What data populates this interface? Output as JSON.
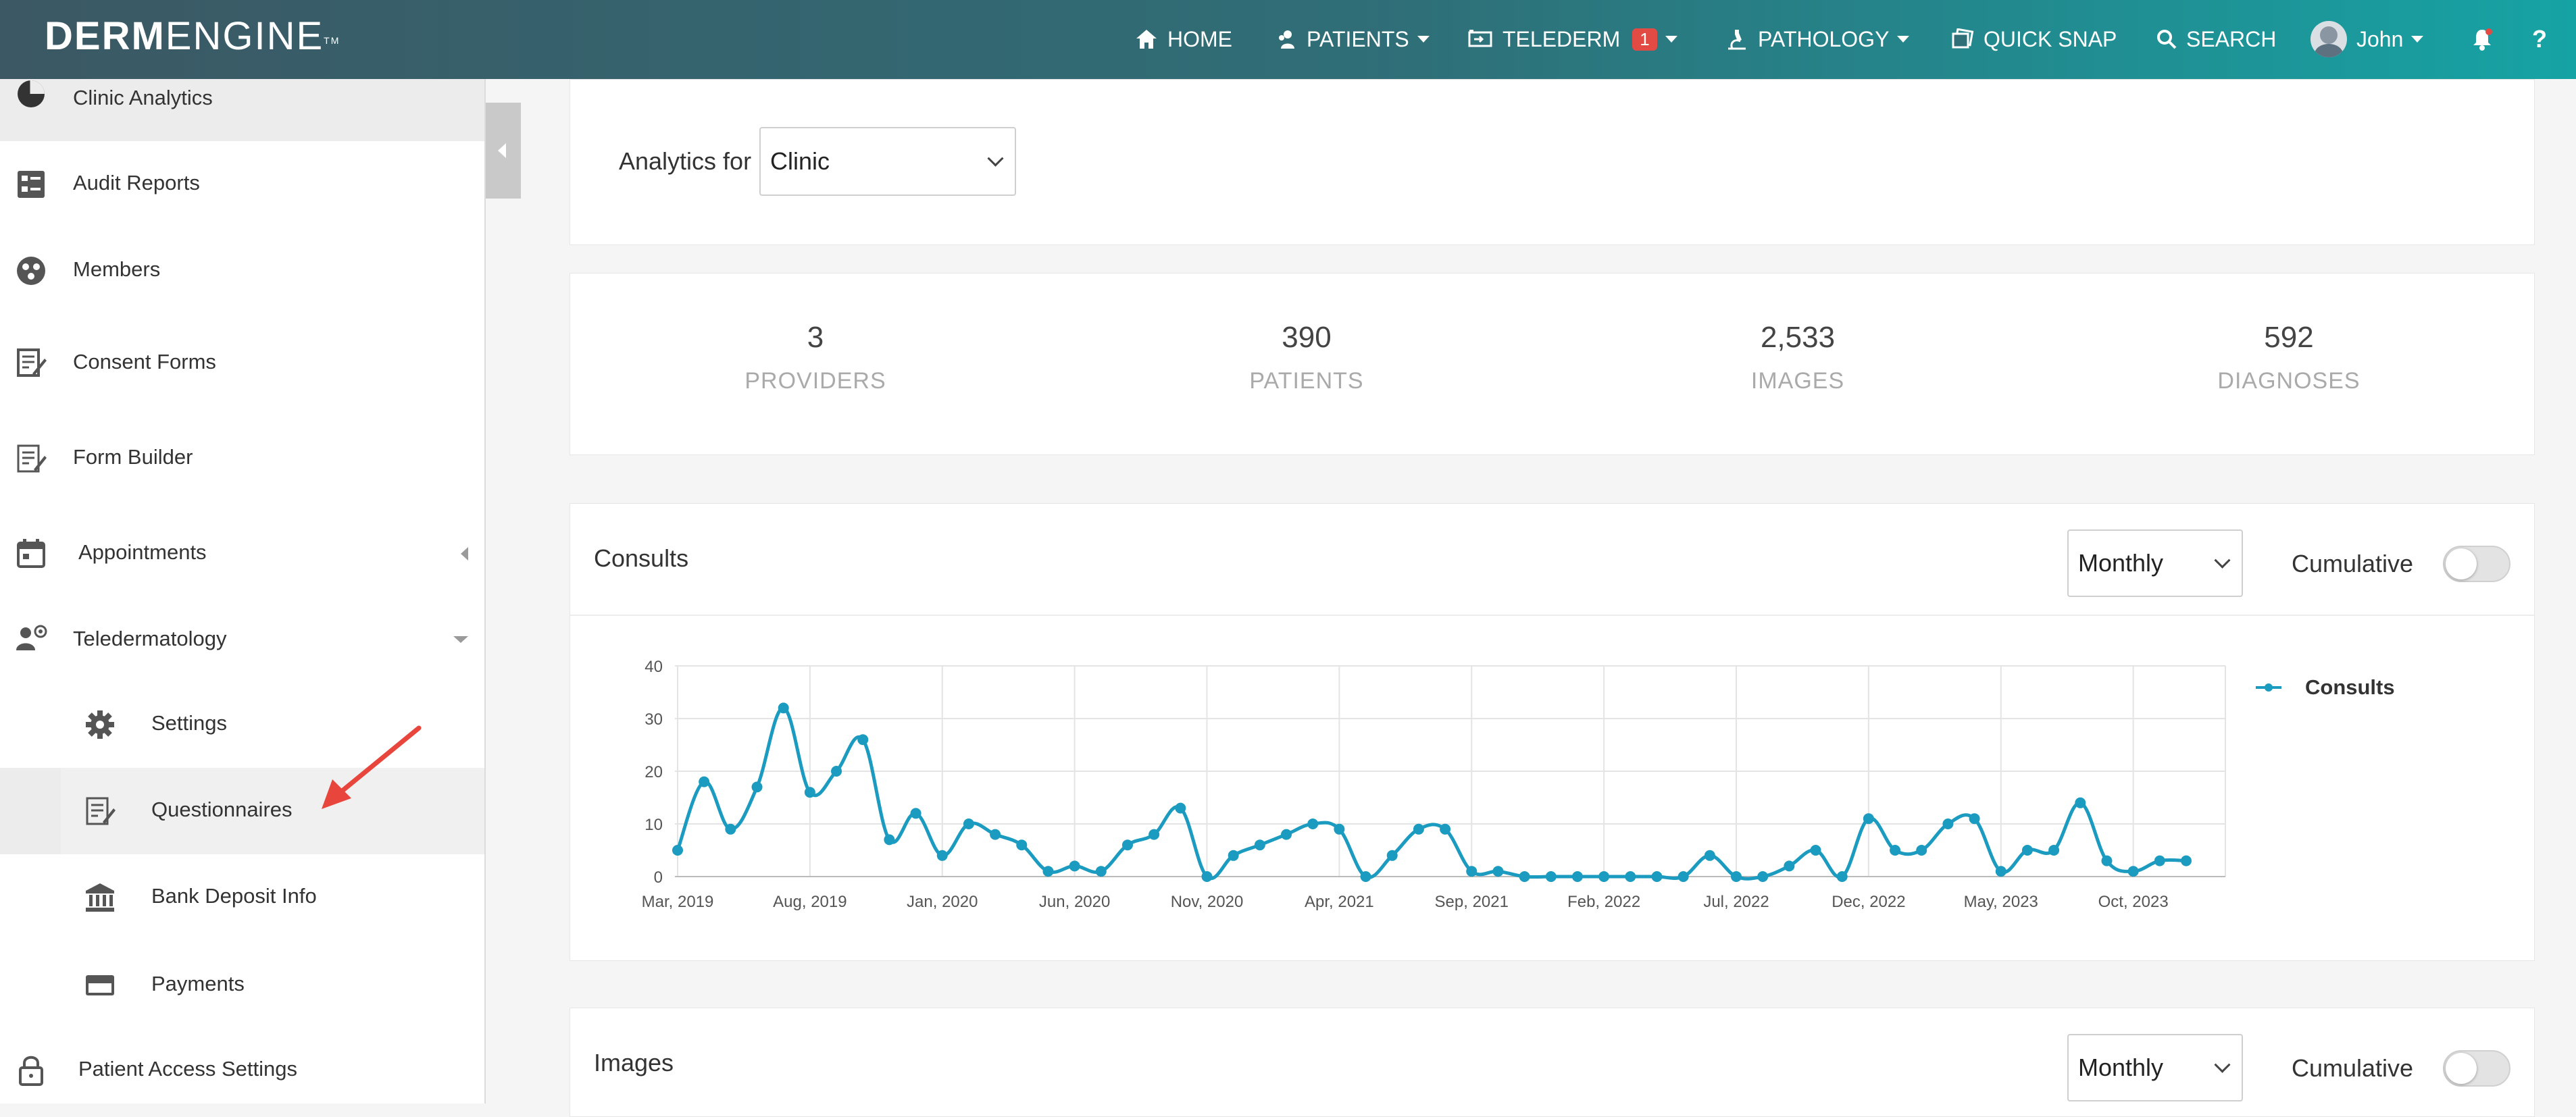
{
  "brand": {
    "logo_bold": "DERM",
    "logo_light": "ENGINE",
    "logo_tm": "TM"
  },
  "nav": {
    "home": "HOME",
    "patients": "PATIENTS",
    "telederm": "TELEDERM",
    "telederm_badge": "1",
    "pathology": "PATHOLOGY",
    "quick_snap": "QUICK SNAP",
    "search": "SEARCH",
    "user": "John"
  },
  "sidebar": {
    "items": [
      {
        "label": "Clinic Analytics",
        "icon": "pie-chart-icon"
      },
      {
        "label": "Audit Reports",
        "icon": "report-icon"
      },
      {
        "label": "Members",
        "icon": "members-icon"
      },
      {
        "label": "Consent Forms",
        "icon": "consent-form-icon"
      },
      {
        "label": "Form Builder",
        "icon": "form-builder-icon"
      },
      {
        "label": "Appointments",
        "icon": "calendar-icon"
      },
      {
        "label": "Teledermatology",
        "icon": "teledermatology-icon"
      },
      {
        "label": "Settings",
        "icon": "gear-icon"
      },
      {
        "label": "Questionnaires",
        "icon": "questionnaire-icon"
      },
      {
        "label": "Bank Deposit Info",
        "icon": "bank-icon"
      },
      {
        "label": "Payments",
        "icon": "credit-card-icon"
      },
      {
        "label": "Patient Access Settings",
        "icon": "lock-icon"
      }
    ]
  },
  "analytics": {
    "label": "Analytics for",
    "selected": "Clinic"
  },
  "stats": [
    {
      "value": "3",
      "label": "PROVIDERS"
    },
    {
      "value": "390",
      "label": "PATIENTS"
    },
    {
      "value": "2,533",
      "label": "IMAGES"
    },
    {
      "value": "592",
      "label": "DIAGNOSES"
    }
  ],
  "consults": {
    "title": "Consults",
    "interval": "Monthly",
    "cumulative_label": "Cumulative",
    "cumulative_on": false
  },
  "images": {
    "title": "Images",
    "interval": "Monthly",
    "cumulative_label": "Cumulative",
    "cumulative_on": false
  },
  "colors": {
    "accent": "#1a9bbf",
    "annotation": "#e8453c"
  },
  "chart_data": {
    "type": "line",
    "title": "",
    "xlabel": "",
    "ylabel": "",
    "ylim": [
      0,
      40
    ],
    "yticks": [
      0,
      10,
      20,
      30,
      40
    ],
    "x_tick_labels": [
      "Mar, 2019",
      "Aug, 2019",
      "Jan, 2020",
      "Jun, 2020",
      "Nov, 2020",
      "Apr, 2021",
      "Sep, 2021",
      "Feb, 2022",
      "Jul, 2022",
      "Dec, 2022",
      "May, 2023",
      "Oct, 2023"
    ],
    "grid": true,
    "legend_position": "top-right",
    "series": [
      {
        "name": "Consults",
        "values": [
          5,
          18,
          9,
          17,
          32,
          16,
          20,
          26,
          7,
          12,
          4,
          10,
          8,
          6,
          1,
          2,
          1,
          6,
          8,
          13,
          0,
          4,
          6,
          8,
          10,
          9,
          0,
          4,
          9,
          9,
          1,
          1,
          0,
          0,
          0,
          0,
          0,
          0,
          0,
          4,
          0,
          0,
          2,
          5,
          0,
          11,
          5,
          5,
          10,
          11,
          1,
          5,
          5,
          14,
          3,
          1,
          3,
          3
        ]
      }
    ]
  }
}
